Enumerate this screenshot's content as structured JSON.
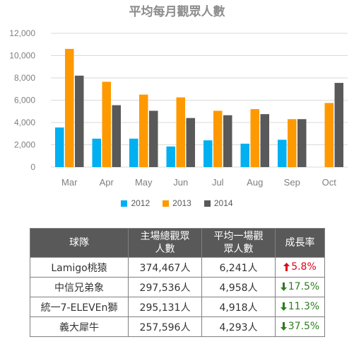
{
  "chart_data": {
    "type": "bar",
    "title": "平均每月觀眾人數",
    "categories": [
      "Mar",
      "Apr",
      "May",
      "Jun",
      "Jul",
      "Aug",
      "Sep",
      "Oct"
    ],
    "series": [
      {
        "name": "2012",
        "color": "#00b0f0",
        "values": [
          3550,
          2550,
          2550,
          1850,
          2400,
          2100,
          2450,
          null
        ]
      },
      {
        "name": "2013",
        "color": "#ff9900",
        "values": [
          10600,
          7650,
          6500,
          6250,
          5050,
          5200,
          4300,
          5750
        ]
      },
      {
        "name": "2014",
        "color": "#595959",
        "values": [
          8200,
          5550,
          5050,
          4400,
          4650,
          4750,
          4300,
          7550
        ]
      }
    ],
    "ylim": [
      0,
      12000
    ],
    "yticks": [
      "0",
      "2,000",
      "4,000",
      "6,000",
      "8,000",
      "10,000",
      "12,000"
    ],
    "grid": true,
    "legend": "bottom"
  },
  "table": {
    "headers": {
      "team": "球隊",
      "total_line1": "主場總觀眾",
      "total_line2": "人數",
      "avg_line1": "平均一場觀",
      "avg_line2": "眾人數",
      "growth": "成長率"
    },
    "rows": [
      {
        "team": "Lamigo桃猿",
        "total": "374,467人",
        "avg": "6,241人",
        "growth": "5.8%",
        "trend": "up",
        "trend_icon": "arrow-up-icon"
      },
      {
        "team": "中信兄弟象",
        "total": "297,536人",
        "avg": "4,958人",
        "growth": "17.5%",
        "trend": "down",
        "trend_icon": "arrow-down-icon"
      },
      {
        "team": "統一7-ELEVEn獅",
        "total": "295,131人",
        "avg": "4,918人",
        "growth": "11.3%",
        "trend": "down",
        "trend_icon": "arrow-down-icon"
      },
      {
        "team": "義大犀牛",
        "total": "257,596人",
        "avg": "4,293人",
        "growth": "37.5%",
        "trend": "down",
        "trend_icon": "arrow-down-icon"
      }
    ],
    "colors": {
      "up": "#e0001b",
      "down": "#2e7d1f",
      "header_bg": "#595959"
    }
  }
}
